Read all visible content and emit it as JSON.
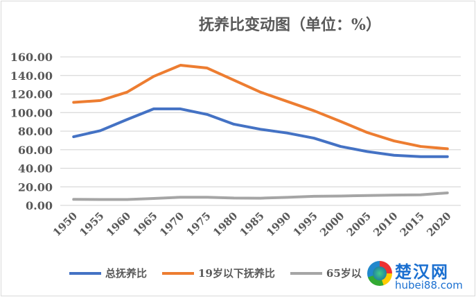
{
  "chart_data": {
    "type": "line",
    "title": "抚养比变动图（单位：%）",
    "xlabel": "",
    "ylabel": "",
    "ylim": [
      0,
      160
    ],
    "yticks": [
      "0.00",
      "20.00",
      "40.00",
      "60.00",
      "80.00",
      "100.00",
      "120.00",
      "140.00",
      "160.00"
    ],
    "grid": true,
    "legend_position": "bottom",
    "categories": [
      "1950",
      "1955",
      "1960",
      "1965",
      "1970",
      "1975",
      "1980",
      "1985",
      "1990",
      "1995",
      "2000",
      "2005",
      "2010",
      "2015",
      "2020"
    ],
    "series": [
      {
        "name": "总抚养比",
        "color": "#4472c4",
        "values": [
          74.0,
          80.5,
          92.5,
          104.0,
          104.0,
          98.0,
          87.5,
          82.0,
          78.0,
          72.5,
          63.5,
          58.0,
          54.0,
          52.5,
          52.5
        ]
      },
      {
        "name": "19岁以下抚养比",
        "color": "#ed7d31",
        "values": [
          111.0,
          113.0,
          122.0,
          139.0,
          151.0,
          148.0,
          135.0,
          122.0,
          112.0,
          102.0,
          90.5,
          78.5,
          69.5,
          63.5,
          61.0
        ]
      },
      {
        "name": "65岁以上抚养比",
        "color": "#a5a5a5",
        "values": [
          6.5,
          6.4,
          6.4,
          7.5,
          8.8,
          8.8,
          7.9,
          7.8,
          8.7,
          9.8,
          10.1,
          10.7,
          11.1,
          11.4,
          13.5
        ]
      }
    ]
  },
  "watermark": {
    "cn": "楚汉网",
    "en": "hubei88.com"
  }
}
